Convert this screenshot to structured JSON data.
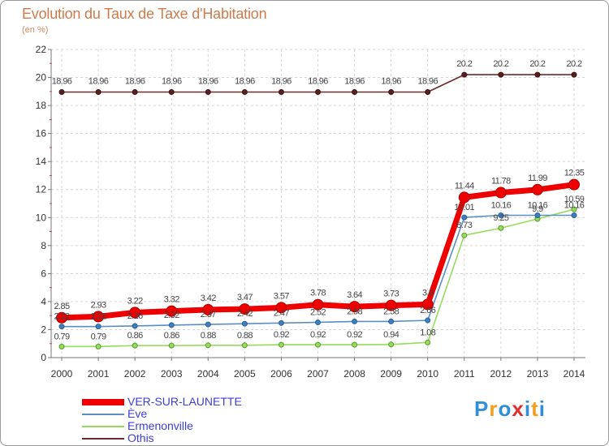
{
  "chart_data": {
    "type": "line",
    "title": "Evolution du Taux de Taxe d'Habitation",
    "ylabel": "(en %)",
    "xlabel": "",
    "ylim": [
      0,
      22
    ],
    "yticks": [
      0,
      2,
      4,
      6,
      8,
      10,
      12,
      14,
      16,
      18,
      20,
      22
    ],
    "categories": [
      "2000",
      "2001",
      "2002",
      "2003",
      "2004",
      "2005",
      "2006",
      "2007",
      "2008",
      "2009",
      "2010",
      "2011",
      "2012",
      "2013",
      "2014"
    ],
    "grid": true,
    "legend_position": "bottom-left",
    "series": [
      {
        "name": "Othis",
        "color": "#6b2a2a",
        "values": [
          18.96,
          18.96,
          18.96,
          18.96,
          18.96,
          18.96,
          18.96,
          18.96,
          18.96,
          18.96,
          18.96,
          20.2,
          20.2,
          20.2,
          20.2
        ],
        "labels": [
          "18.96",
          "18.96",
          "18.96",
          "18.96",
          "18.96",
          "18.96",
          "18.96",
          "18.96",
          "18.96",
          "18.96",
          "18.96",
          "20.2",
          "20.2",
          "20.2",
          "20.2"
        ]
      },
      {
        "name": "Ermenonville",
        "color": "#96dc5a",
        "values": [
          0.79,
          0.79,
          0.86,
          0.86,
          0.88,
          0.88,
          0.92,
          0.92,
          0.92,
          0.94,
          1.08,
          8.73,
          9.25,
          9.9,
          10.59
        ],
        "labels": [
          "0.79",
          "0.79",
          "0.86",
          "0.86",
          "0.88",
          "0.88",
          "0.92",
          "0.92",
          "0.92",
          "0.94",
          "1.08",
          "8.73",
          "9.25",
          "9.9",
          "10.59"
        ]
      },
      {
        "name": "Ève",
        "color": "#5b8fc4",
        "values": [
          2.22,
          2.22,
          2.26,
          2.32,
          2.37,
          2.42,
          2.47,
          2.52,
          2.58,
          2.58,
          2.66,
          10.01,
          10.16,
          10.16,
          10.16
        ],
        "labels": [
          "2.22",
          "2.22",
          "2.26",
          "2.32",
          "2.37",
          "2.42",
          "2.47",
          "2.52",
          "2.58",
          "2.58",
          "2.66",
          "10.01",
          "10.16",
          "10.16",
          "10.16"
        ]
      },
      {
        "name": "VER-SUR-LAUNETTE",
        "color": "#ee0000",
        "values": [
          2.85,
          2.93,
          3.22,
          3.32,
          3.42,
          3.47,
          3.57,
          3.78,
          3.64,
          3.73,
          3.8,
          11.44,
          11.78,
          11.99,
          12.35
        ],
        "labels": [
          "2.85",
          "2.93",
          "3.22",
          "3.32",
          "3.42",
          "3.47",
          "3.57",
          "3.78",
          "3.64",
          "3.73",
          "3.8",
          "11.44",
          "11.78",
          "11.99",
          "12.35"
        ]
      }
    ],
    "legend": [
      "VER-SUR-LAUNETTE",
      "Ève",
      "Ermenonville",
      "Othis"
    ]
  },
  "branding": {
    "logo_text": "Proxiti",
    "letter_colors": [
      "#2f8fd8",
      "#f0a020",
      "#2f8fd8",
      "#e03030",
      "#2f8fd8",
      "#f0a020",
      "#2f8fd8"
    ]
  }
}
